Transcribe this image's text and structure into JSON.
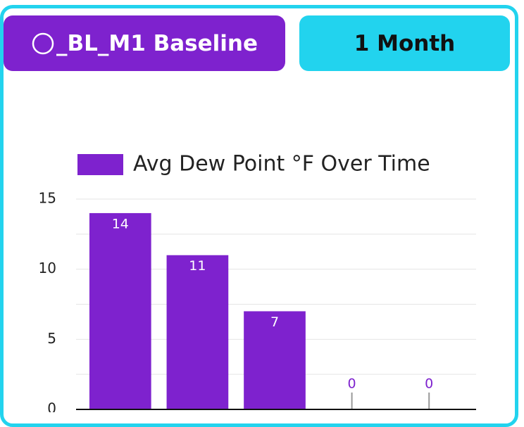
{
  "buttons": [
    {
      "label": "_BL_M1 Baseline"
    },
    {
      "label": "1 Month"
    }
  ],
  "chart_data": {
    "type": "bar",
    "legend": "Avg Dew Point °F Over Time",
    "categories": [
      null,
      null,
      null,
      null,
      null
    ],
    "values": [
      14,
      11,
      7,
      0,
      0
    ],
    "color": "#7e22ce",
    "ylim": [
      0,
      15
    ],
    "yticks": [
      0,
      5,
      10,
      15
    ],
    "minor_yticks": [
      2.5,
      7.5,
      12.5
    ],
    "grid": true
  }
}
